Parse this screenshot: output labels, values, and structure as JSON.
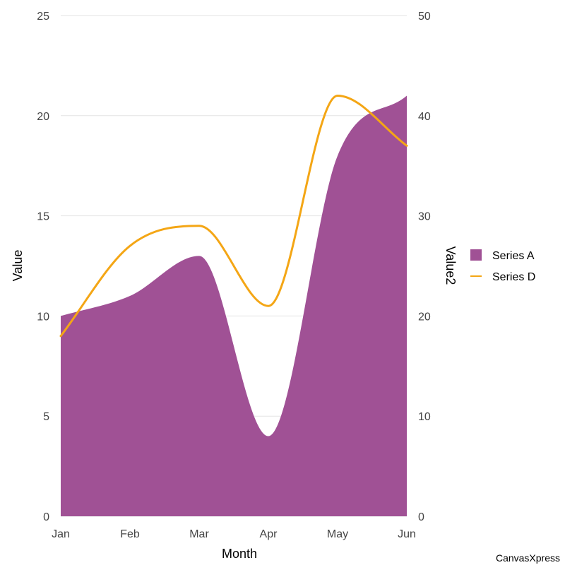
{
  "chart_data": {
    "type": "area",
    "categories": [
      "Jan",
      "Feb",
      "Mar",
      "Apr",
      "May",
      "Jun"
    ],
    "series": [
      {
        "name": "Series A",
        "type": "area",
        "axis": "left",
        "color": "#A05195",
        "values": [
          10,
          11,
          13,
          4,
          18,
          21
        ]
      },
      {
        "name": "Series D",
        "type": "line",
        "axis": "right",
        "color": "#F4A615",
        "values": [
          18,
          27,
          29,
          21,
          42,
          37
        ]
      }
    ],
    "xlabel": "Month",
    "ylabel": "Value",
    "y2label": "Value2",
    "ylim": [
      0,
      25
    ],
    "y2lim": [
      0,
      50
    ],
    "yticks": [
      0,
      5,
      10,
      15,
      20,
      25
    ],
    "y2ticks": [
      0,
      10,
      20,
      30,
      40,
      50
    ],
    "grid": true,
    "legend": "right"
  },
  "branding": {
    "label": "CanvasXpress"
  }
}
